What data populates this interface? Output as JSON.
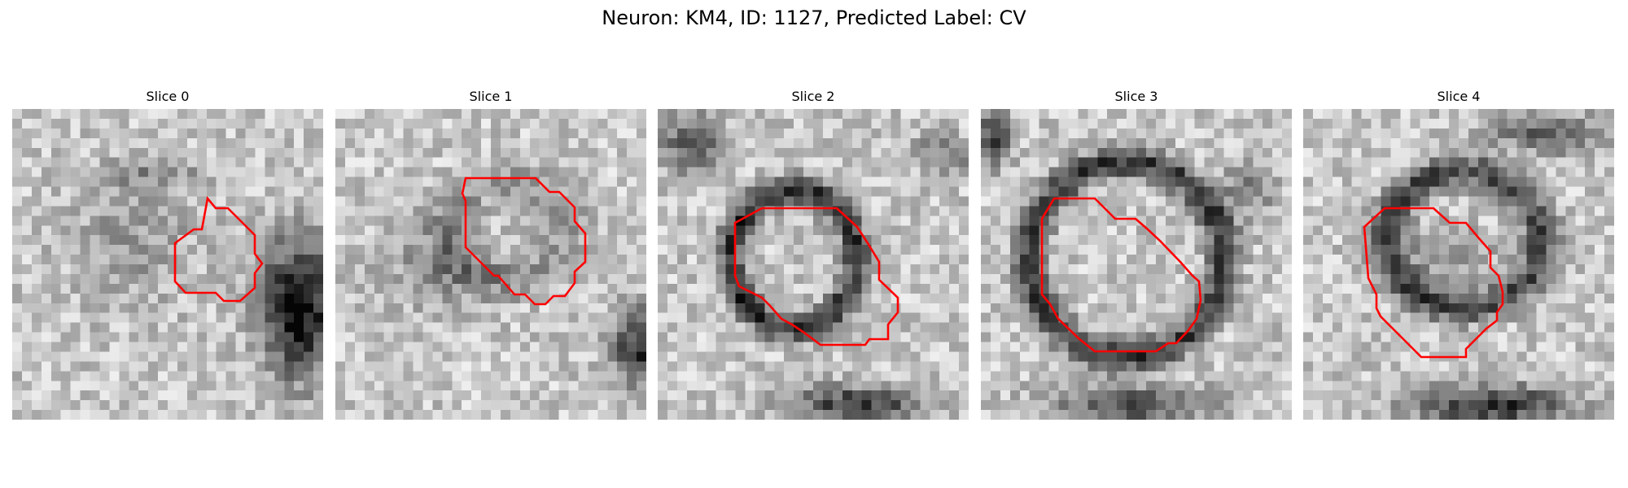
{
  "figure": {
    "title": "Neuron: KM4, ID: 1127, Predicted Label: CV"
  },
  "colors": {
    "contour": "#ff0000",
    "background": "#ffffff"
  },
  "panels": [
    {
      "title": "Slice 0"
    },
    {
      "title": "Slice 1"
    },
    {
      "title": "Slice 2"
    },
    {
      "title": "Slice 3"
    },
    {
      "title": "Slice 4"
    }
  ]
}
